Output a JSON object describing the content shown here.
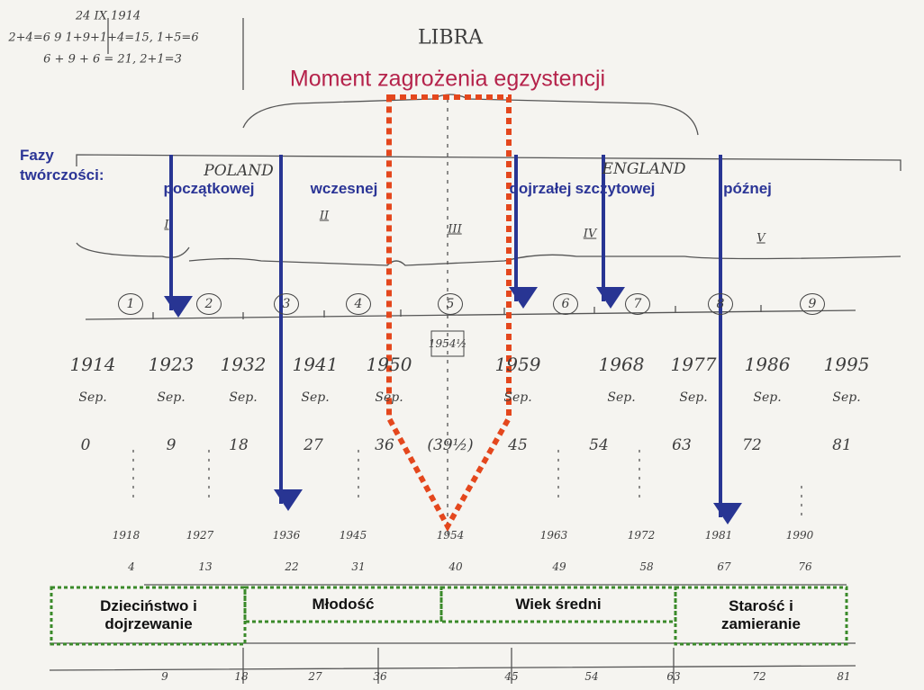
{
  "title": "Moment zagrożenia egzystencji",
  "notes": [
    "24 IX 1914",
    "2+4=6  9  1+9+1+4=15, 1+5=6",
    "6 + 9 + 6 = 21, 2+1=3"
  ],
  "sign": "LIBRA",
  "phases_label": "Fazy twórczości:",
  "phases": [
    "początkowej",
    "wczesnej",
    "dojrzałej",
    "szczytowej",
    "późnej"
  ],
  "countries": [
    "POLAND",
    "ENGLAND"
  ],
  "periods": [
    "I",
    "II",
    "III",
    "IV",
    "V"
  ],
  "cycles": [
    "1",
    "2",
    "3",
    "4",
    "5",
    "6",
    "7",
    "8",
    "9"
  ],
  "midpoint": "1954½",
  "years": [
    "1914",
    "1923",
    "1932",
    "1941",
    "1950",
    "1959",
    "1968",
    "1977",
    "1986",
    "1995"
  ],
  "month": "Sep.",
  "ages": [
    "0",
    "9",
    "18",
    "27",
    "36",
    "(39½)",
    "45",
    "54",
    "63",
    "72",
    "81"
  ],
  "lower_years": [
    "1918",
    "1927",
    "1936",
    "1945",
    "1954",
    "1963",
    "1972",
    "1981",
    "1990"
  ],
  "lower_ages": [
    "4",
    "13",
    "22",
    "31",
    "40",
    "49",
    "58",
    "67",
    "76"
  ],
  "bottom_ages": [
    "9",
    "18",
    "27",
    "36",
    "45",
    "54",
    "63",
    "72",
    "81"
  ],
  "life_stages": [
    "Dzieciństwo i dojrzewanie",
    "Młodość",
    "Wiek średni",
    "Starość i zamieranie"
  ]
}
